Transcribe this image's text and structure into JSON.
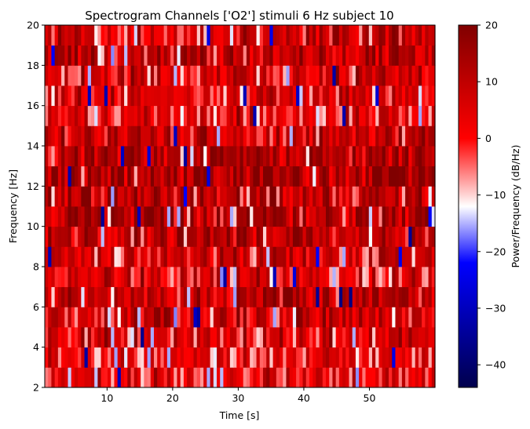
{
  "chart_data": {
    "type": "heatmap",
    "title": "Spectrogram Channels ['O2'] stimuli 6 Hz subject 10",
    "xlabel": "Time [s]",
    "ylabel": "Frequency [Hz]",
    "xlim": [
      0.5,
      60
    ],
    "ylim": [
      2,
      20
    ],
    "x_ticks": [
      10,
      20,
      30,
      40,
      50
    ],
    "y_ticks": [
      2,
      4,
      6,
      8,
      10,
      12,
      14,
      16,
      18,
      20
    ],
    "colorbar": {
      "label": "Power/Frequency (dB/Hz)",
      "range": [
        -44,
        20
      ],
      "ticks": [
        20,
        10,
        0,
        -10,
        -20,
        -30,
        -40
      ],
      "colormap": "seismic",
      "colors": [
        "#00004c",
        "#0000ff",
        "#ffffff",
        "#ff0000",
        "#800000"
      ]
    },
    "freq_rows": [
      {
        "freq": 2.5,
        "mean_db": 3
      },
      {
        "freq": 3.5,
        "mean_db": 2
      },
      {
        "freq": 4.5,
        "mean_db": 4
      },
      {
        "freq": 5.5,
        "mean_db": 6
      },
      {
        "freq": 6.5,
        "mean_db": 10
      },
      {
        "freq": 7.5,
        "mean_db": 5
      },
      {
        "freq": 8.5,
        "mean_db": 7
      },
      {
        "freq": 9.5,
        "mean_db": 10
      },
      {
        "freq": 10.5,
        "mean_db": 12
      },
      {
        "freq": 11.5,
        "mean_db": 11
      },
      {
        "freq": 12.5,
        "mean_db": 14
      },
      {
        "freq": 13.5,
        "mean_db": 11
      },
      {
        "freq": 14.5,
        "mean_db": 8
      },
      {
        "freq": 15.5,
        "mean_db": 3
      },
      {
        "freq": 16.5,
        "mean_db": 6
      },
      {
        "freq": 17.5,
        "mean_db": 5
      },
      {
        "freq": 18.5,
        "mean_db": 9
      },
      {
        "freq": 19.5,
        "mean_db": 6
      }
    ],
    "time_bins": 118,
    "time_step": 0.5,
    "time_start": 0.5
  }
}
